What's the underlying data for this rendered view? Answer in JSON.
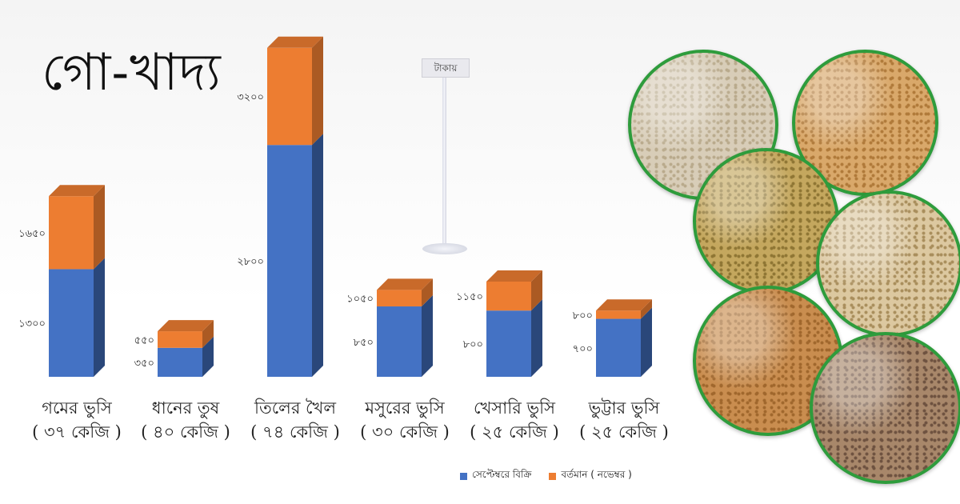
{
  "title": "গো-খাদ্য",
  "unit_label": "টাকায়",
  "colors": {
    "september": "#4472c4",
    "november": "#ed7d31",
    "ring": "#2e9c3c"
  },
  "legend": {
    "september": "সেপ্টেম্বরে বিক্রি",
    "november": "বর্তমান ( নভেম্বর )"
  },
  "chart_data": {
    "type": "bar",
    "stacked": true,
    "categories": [
      {
        "name": "গমের ভুসি",
        "qty": "( ৩৭ কেজি )"
      },
      {
        "name": "ধানের তুষ",
        "qty": "( ৪০ কেজি )"
      },
      {
        "name": "তিলের খৈল",
        "qty": "( ৭৪ কেজি )"
      },
      {
        "name": "মসুরের ভুসি",
        "qty": "( ৩০ কেজি )"
      },
      {
        "name": "খেসারি ভুসি",
        "qty": "( ২৫ কেজি )"
      },
      {
        "name": "ভুট্টার ভুসি",
        "qty": "( ২৫ কেজি )"
      }
    ],
    "series": [
      {
        "name": "সেপ্টেম্বরে বিক্রি",
        "values": [
          1300,
          350,
          2800,
          850,
          800,
          700
        ],
        "labels": [
          "১৩০০",
          "৩৫০",
          "২৮০০",
          "৮৫০",
          "৮০০",
          "৭০০"
        ]
      },
      {
        "name": "বর্তমান ( নভেম্বর )",
        "values": [
          1650,
          550,
          3200,
          1050,
          1150,
          800
        ],
        "labels": [
          "১৬৫০",
          "৫৫০",
          "৩২০০",
          "১০৫০",
          "১১৫০",
          "৮০০"
        ]
      }
    ],
    "legend_position": "bottom-right",
    "grid": false
  },
  "images": [
    {
      "name": "wheat-bran-photo",
      "fill": "#d8cdb8",
      "dots": "#b9aa8c"
    },
    {
      "name": "wheat-grain-photo",
      "fill": "#d9a86a",
      "dots": "#b07a3a"
    },
    {
      "name": "sesame-cake-photo",
      "fill": "#c4a75e",
      "dots": "#8f7634"
    },
    {
      "name": "rice-husk-photo",
      "fill": "#dcc8a0",
      "dots": "#a98e5c"
    },
    {
      "name": "corn-bran-photo",
      "fill": "#c98d4f",
      "dots": "#a0672d"
    },
    {
      "name": "lentil-bran-photo",
      "fill": "#a8876a",
      "dots": "#6e5240"
    }
  ]
}
